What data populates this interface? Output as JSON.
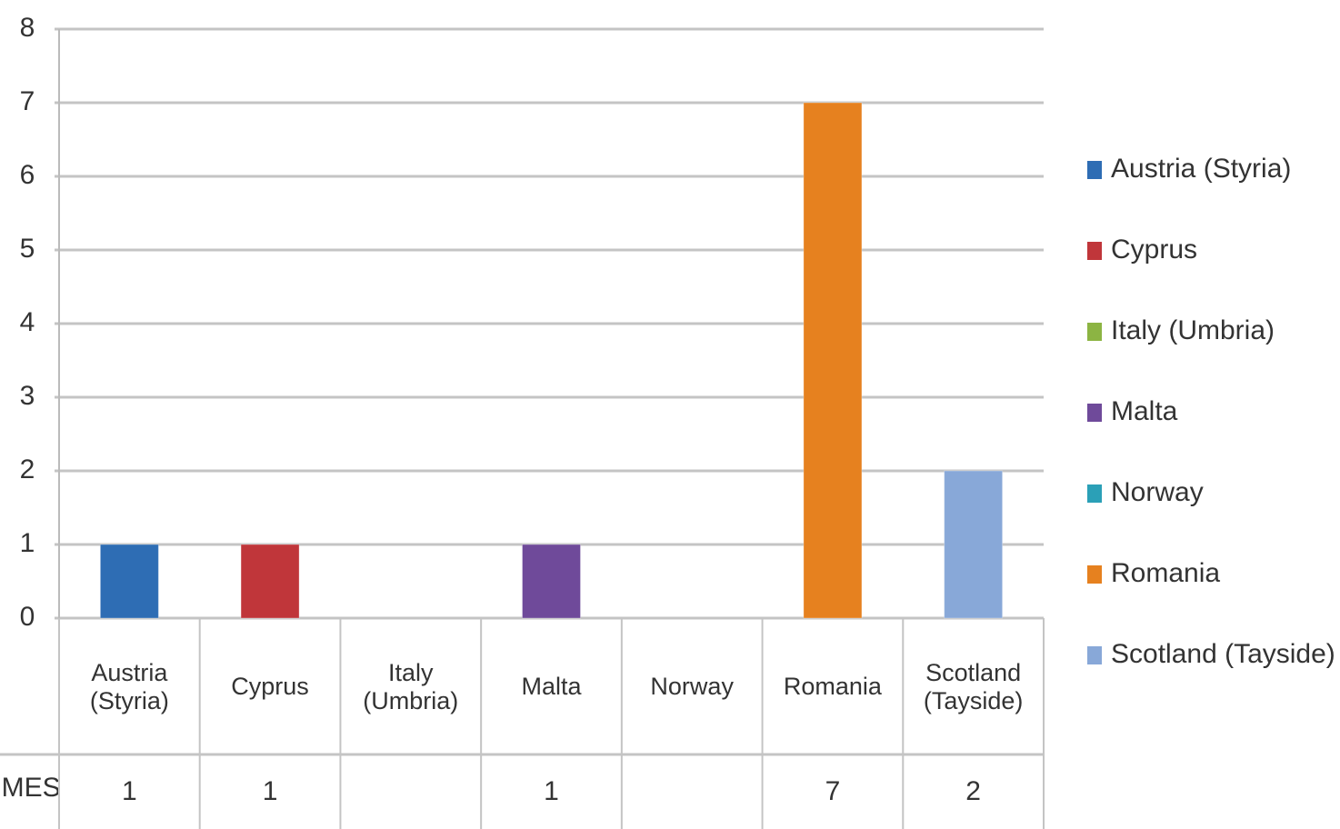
{
  "chart_data": {
    "type": "bar",
    "categories": [
      "Austria (Styria)",
      "Cyprus",
      "Italy (Umbria)",
      "Malta",
      "Norway",
      "Romania",
      "Scotland (Tayside)"
    ],
    "values": [
      1,
      1,
      null,
      1,
      null,
      7,
      2
    ],
    "colors": [
      "#2e6db4",
      "#c0363a",
      "#8cb443",
      "#6f4a9a",
      "#2ba0b7",
      "#e6811f",
      "#88a8d8"
    ],
    "row_label": "IMES",
    "ylim": [
      0,
      8
    ],
    "yticks": [
      0,
      1,
      2,
      3,
      4,
      5,
      6,
      7,
      8
    ],
    "grid": true,
    "legend": "right"
  }
}
